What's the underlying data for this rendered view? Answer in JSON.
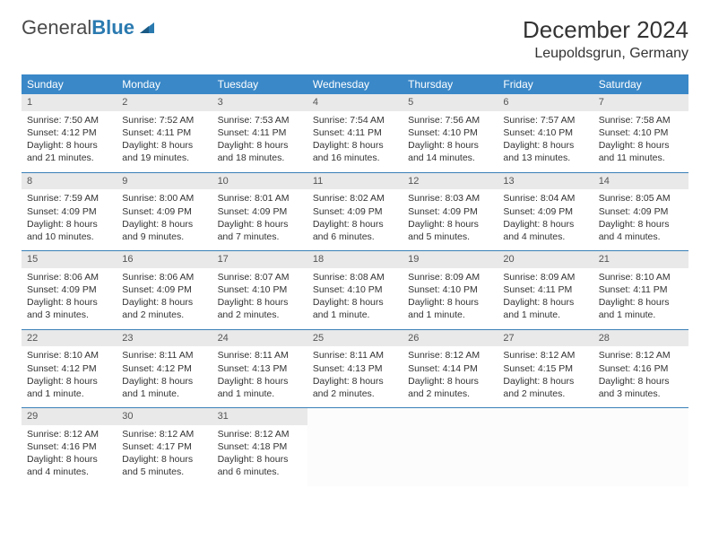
{
  "logo": {
    "text1": "General",
    "text2": "Blue"
  },
  "title": "December 2024",
  "location": "Leupoldsgrun, Germany",
  "colors": {
    "header_bg": "#3a88c8",
    "header_text": "#ffffff",
    "daynum_bg": "#e9e9e9",
    "row_border": "#3a80b8",
    "logo_blue": "#2a7ab0"
  },
  "day_headers": [
    "Sunday",
    "Monday",
    "Tuesday",
    "Wednesday",
    "Thursday",
    "Friday",
    "Saturday"
  ],
  "days": [
    {
      "n": "1",
      "sr": "Sunrise: 7:50 AM",
      "ss": "Sunset: 4:12 PM",
      "d1": "Daylight: 8 hours",
      "d2": "and 21 minutes."
    },
    {
      "n": "2",
      "sr": "Sunrise: 7:52 AM",
      "ss": "Sunset: 4:11 PM",
      "d1": "Daylight: 8 hours",
      "d2": "and 19 minutes."
    },
    {
      "n": "3",
      "sr": "Sunrise: 7:53 AM",
      "ss": "Sunset: 4:11 PM",
      "d1": "Daylight: 8 hours",
      "d2": "and 18 minutes."
    },
    {
      "n": "4",
      "sr": "Sunrise: 7:54 AM",
      "ss": "Sunset: 4:11 PM",
      "d1": "Daylight: 8 hours",
      "d2": "and 16 minutes."
    },
    {
      "n": "5",
      "sr": "Sunrise: 7:56 AM",
      "ss": "Sunset: 4:10 PM",
      "d1": "Daylight: 8 hours",
      "d2": "and 14 minutes."
    },
    {
      "n": "6",
      "sr": "Sunrise: 7:57 AM",
      "ss": "Sunset: 4:10 PM",
      "d1": "Daylight: 8 hours",
      "d2": "and 13 minutes."
    },
    {
      "n": "7",
      "sr": "Sunrise: 7:58 AM",
      "ss": "Sunset: 4:10 PM",
      "d1": "Daylight: 8 hours",
      "d2": "and 11 minutes."
    },
    {
      "n": "8",
      "sr": "Sunrise: 7:59 AM",
      "ss": "Sunset: 4:09 PM",
      "d1": "Daylight: 8 hours",
      "d2": "and 10 minutes."
    },
    {
      "n": "9",
      "sr": "Sunrise: 8:00 AM",
      "ss": "Sunset: 4:09 PM",
      "d1": "Daylight: 8 hours",
      "d2": "and 9 minutes."
    },
    {
      "n": "10",
      "sr": "Sunrise: 8:01 AM",
      "ss": "Sunset: 4:09 PM",
      "d1": "Daylight: 8 hours",
      "d2": "and 7 minutes."
    },
    {
      "n": "11",
      "sr": "Sunrise: 8:02 AM",
      "ss": "Sunset: 4:09 PM",
      "d1": "Daylight: 8 hours",
      "d2": "and 6 minutes."
    },
    {
      "n": "12",
      "sr": "Sunrise: 8:03 AM",
      "ss": "Sunset: 4:09 PM",
      "d1": "Daylight: 8 hours",
      "d2": "and 5 minutes."
    },
    {
      "n": "13",
      "sr": "Sunrise: 8:04 AM",
      "ss": "Sunset: 4:09 PM",
      "d1": "Daylight: 8 hours",
      "d2": "and 4 minutes."
    },
    {
      "n": "14",
      "sr": "Sunrise: 8:05 AM",
      "ss": "Sunset: 4:09 PM",
      "d1": "Daylight: 8 hours",
      "d2": "and 4 minutes."
    },
    {
      "n": "15",
      "sr": "Sunrise: 8:06 AM",
      "ss": "Sunset: 4:09 PM",
      "d1": "Daylight: 8 hours",
      "d2": "and 3 minutes."
    },
    {
      "n": "16",
      "sr": "Sunrise: 8:06 AM",
      "ss": "Sunset: 4:09 PM",
      "d1": "Daylight: 8 hours",
      "d2": "and 2 minutes."
    },
    {
      "n": "17",
      "sr": "Sunrise: 8:07 AM",
      "ss": "Sunset: 4:10 PM",
      "d1": "Daylight: 8 hours",
      "d2": "and 2 minutes."
    },
    {
      "n": "18",
      "sr": "Sunrise: 8:08 AM",
      "ss": "Sunset: 4:10 PM",
      "d1": "Daylight: 8 hours",
      "d2": "and 1 minute."
    },
    {
      "n": "19",
      "sr": "Sunrise: 8:09 AM",
      "ss": "Sunset: 4:10 PM",
      "d1": "Daylight: 8 hours",
      "d2": "and 1 minute."
    },
    {
      "n": "20",
      "sr": "Sunrise: 8:09 AM",
      "ss": "Sunset: 4:11 PM",
      "d1": "Daylight: 8 hours",
      "d2": "and 1 minute."
    },
    {
      "n": "21",
      "sr": "Sunrise: 8:10 AM",
      "ss": "Sunset: 4:11 PM",
      "d1": "Daylight: 8 hours",
      "d2": "and 1 minute."
    },
    {
      "n": "22",
      "sr": "Sunrise: 8:10 AM",
      "ss": "Sunset: 4:12 PM",
      "d1": "Daylight: 8 hours",
      "d2": "and 1 minute."
    },
    {
      "n": "23",
      "sr": "Sunrise: 8:11 AM",
      "ss": "Sunset: 4:12 PM",
      "d1": "Daylight: 8 hours",
      "d2": "and 1 minute."
    },
    {
      "n": "24",
      "sr": "Sunrise: 8:11 AM",
      "ss": "Sunset: 4:13 PM",
      "d1": "Daylight: 8 hours",
      "d2": "and 1 minute."
    },
    {
      "n": "25",
      "sr": "Sunrise: 8:11 AM",
      "ss": "Sunset: 4:13 PM",
      "d1": "Daylight: 8 hours",
      "d2": "and 2 minutes."
    },
    {
      "n": "26",
      "sr": "Sunrise: 8:12 AM",
      "ss": "Sunset: 4:14 PM",
      "d1": "Daylight: 8 hours",
      "d2": "and 2 minutes."
    },
    {
      "n": "27",
      "sr": "Sunrise: 8:12 AM",
      "ss": "Sunset: 4:15 PM",
      "d1": "Daylight: 8 hours",
      "d2": "and 2 minutes."
    },
    {
      "n": "28",
      "sr": "Sunrise: 8:12 AM",
      "ss": "Sunset: 4:16 PM",
      "d1": "Daylight: 8 hours",
      "d2": "and 3 minutes."
    },
    {
      "n": "29",
      "sr": "Sunrise: 8:12 AM",
      "ss": "Sunset: 4:16 PM",
      "d1": "Daylight: 8 hours",
      "d2": "and 4 minutes."
    },
    {
      "n": "30",
      "sr": "Sunrise: 8:12 AM",
      "ss": "Sunset: 4:17 PM",
      "d1": "Daylight: 8 hours",
      "d2": "and 5 minutes."
    },
    {
      "n": "31",
      "sr": "Sunrise: 8:12 AM",
      "ss": "Sunset: 4:18 PM",
      "d1": "Daylight: 8 hours",
      "d2": "and 6 minutes."
    }
  ]
}
